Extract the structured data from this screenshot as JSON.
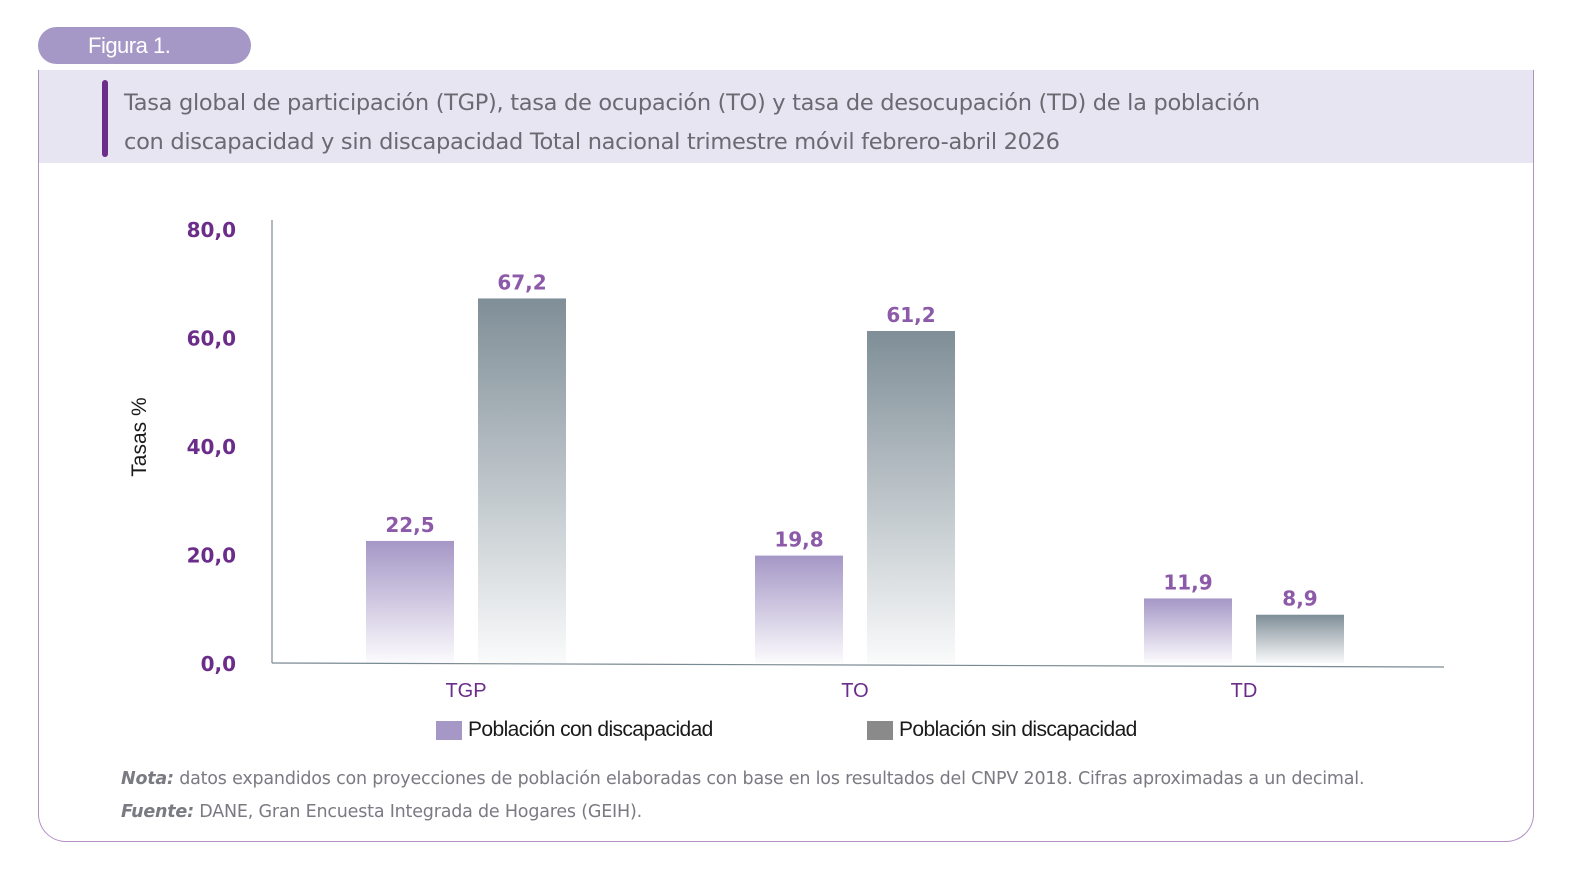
{
  "figure_label": "Figura 1.",
  "title_lines": [
    "Tasa global de participación (TGP), tasa de ocupación (TO) y tasa de desocupación (TD) de la población",
    "con discapacidad y sin discapacidad Total nacional trimestre móvil febrero-abril 2026"
  ],
  "chart_data": {
    "type": "bar",
    "categories": [
      "TGP",
      "TO",
      "TD"
    ],
    "series": [
      {
        "name": "Población con discapacidad",
        "values": [
          22.5,
          19.8,
          11.9
        ],
        "labels": [
          "22,5",
          "19,8",
          "11,9"
        ],
        "color": "#a597c6"
      },
      {
        "name": "Población sin discapacidad",
        "values": [
          67.2,
          61.2,
          8.9
        ],
        "labels": [
          "67,2",
          "61,2",
          "8,9"
        ],
        "color": "#8a979f"
      }
    ],
    "ylabel": "Tasas %",
    "ylim": [
      0,
      80
    ],
    "yticks": [
      0,
      20,
      40,
      60,
      80
    ],
    "ytick_labels": [
      "0,0",
      "20,0",
      "40,0",
      "60,0",
      "80,0"
    ],
    "legend_placement": "bottom",
    "grid": false
  },
  "legend": {
    "swatch_colors": [
      "#a597c6",
      "#8a8a8a"
    ]
  },
  "notes": {
    "nota_label": "Nota:",
    "nota_text": " datos expandidos con proyecciones de población elaboradas con base en los resultados del CNPV 2018. Cifras aproximadas a un decimal.",
    "fuente_label": "Fuente:",
    "fuente_text": " DANE, Gran Encuesta Integrada de Hogares (GEIH)."
  },
  "colors": {
    "accent_purple": "#6b2c8a",
    "tick_purple": "#6b2c8a",
    "label_purple": "#8c5aa8"
  }
}
